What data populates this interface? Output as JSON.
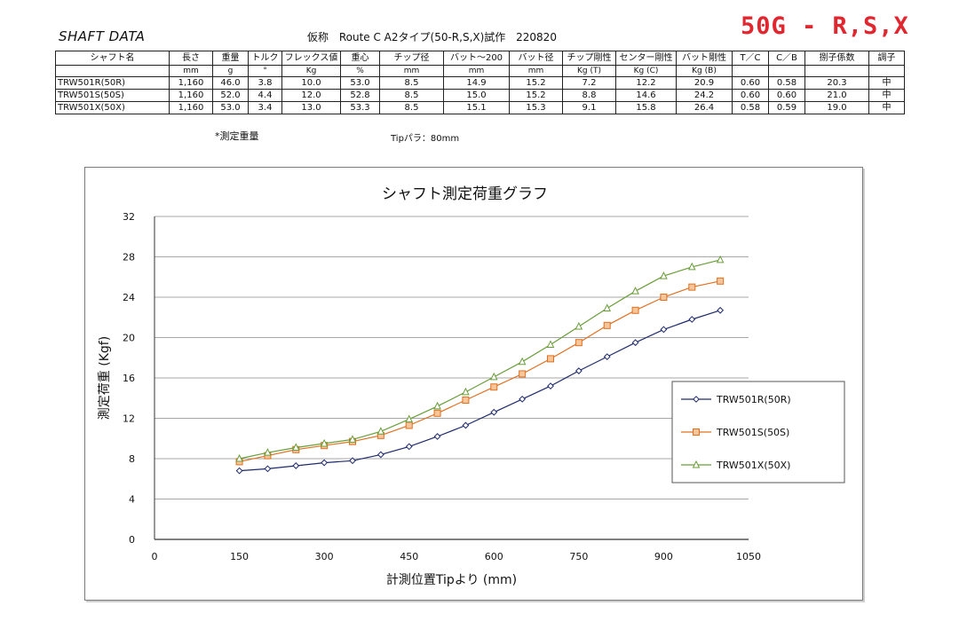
{
  "header": {
    "left_title": "SHAFT DATA",
    "spec_prefix": "仮称",
    "spec_text": "Route C A2タイプ(50-R,S,X)試作",
    "date": "220820",
    "badge": "50G - R,S,X"
  },
  "spec_table": {
    "columns": [
      "シャフト名",
      "長さ",
      "重量",
      "トルク",
      "フレックス値",
      "重心",
      "チップ径",
      "バット～200",
      "バット径",
      "チップ剛性",
      "センター剛性",
      "バット剛性",
      "T／C",
      "C／B",
      "捌子係数",
      "調子"
    ],
    "units": [
      "",
      "mm",
      "g",
      "°",
      "Kg",
      "%",
      "mm",
      "mm",
      "mm",
      "Kg (T)",
      "Kg (C)",
      "Kg (B)",
      "",
      "",
      "",
      ""
    ],
    "rows": [
      [
        "TRW501R(50R)",
        "1,160",
        "46.0",
        "3.8",
        "10.0",
        "53.0",
        "8.5",
        "14.9",
        "15.2",
        "7.2",
        "12.2",
        "20.9",
        "0.60",
        "0.58",
        "20.3",
        "中"
      ],
      [
        "TRW501S(50S)",
        "1,160",
        "52.0",
        "4.4",
        "12.0",
        "52.8",
        "8.5",
        "15.0",
        "15.2",
        "8.8",
        "14.6",
        "24.2",
        "0.60",
        "0.60",
        "21.0",
        "中"
      ],
      [
        "TRW501X(50X)",
        "1,160",
        "53.0",
        "3.4",
        "13.0",
        "53.3",
        "8.5",
        "15.1",
        "15.3",
        "9.1",
        "15.8",
        "26.4",
        "0.58",
        "0.59",
        "19.0",
        "中"
      ]
    ],
    "note_weight": "*測定重量",
    "note_tip": "Tipパラ：80mm"
  },
  "chart_data": {
    "type": "line",
    "title": "シャフト測定荷重グラフ",
    "xlabel": "計測位置Tipより (mm)",
    "ylabel": "測定荷重 (Kgf)",
    "xlim": [
      0,
      1050
    ],
    "ylim": [
      0,
      32
    ],
    "xticks": [
      0,
      150,
      300,
      450,
      600,
      750,
      900,
      1050
    ],
    "yticks": [
      0,
      4,
      8,
      12,
      16,
      20,
      24,
      28,
      32
    ],
    "grid": "horizontal",
    "legend_position": "right",
    "x": [
      150,
      200,
      250,
      300,
      350,
      400,
      450,
      500,
      550,
      600,
      650,
      700,
      750,
      800,
      850,
      900,
      950,
      1000
    ],
    "series": [
      {
        "name": "TRW501R(50R)",
        "color": "#1f2a6b",
        "marker": "diamond",
        "values": [
          6.8,
          7.0,
          7.3,
          7.6,
          7.8,
          8.4,
          9.2,
          10.2,
          11.3,
          12.6,
          13.9,
          15.2,
          16.7,
          18.1,
          19.5,
          20.8,
          21.8,
          22.7
        ]
      },
      {
        "name": "TRW501S(50S)",
        "color": "#e07020",
        "marker": "square",
        "values": [
          7.7,
          8.3,
          8.9,
          9.3,
          9.7,
          10.3,
          11.3,
          12.5,
          13.8,
          15.1,
          16.4,
          17.9,
          19.5,
          21.2,
          22.7,
          24.0,
          25.0,
          25.6
        ]
      },
      {
        "name": "TRW501X(50X)",
        "color": "#6a9e3a",
        "marker": "triangle",
        "values": [
          8.0,
          8.6,
          9.1,
          9.5,
          9.9,
          10.7,
          11.9,
          13.2,
          14.6,
          16.1,
          17.6,
          19.3,
          21.1,
          22.9,
          24.6,
          26.1,
          27.0,
          27.7
        ]
      }
    ]
  }
}
